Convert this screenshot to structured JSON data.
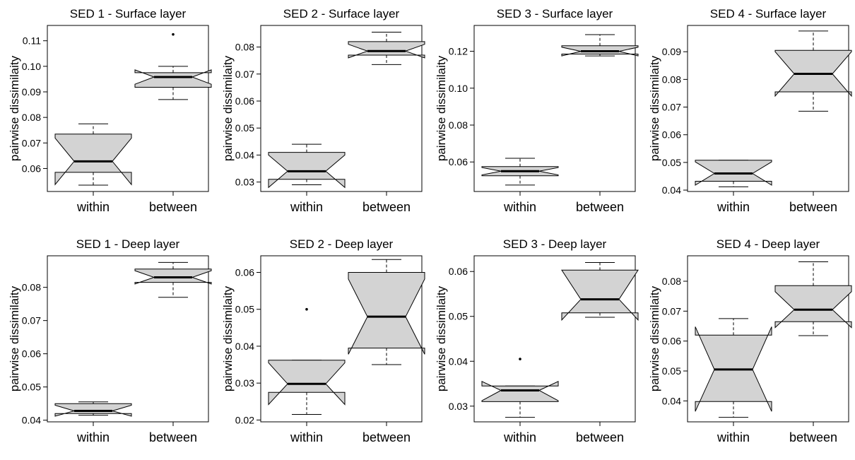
{
  "figure": {
    "ylabel": "pairwise dissimilaity",
    "categories": [
      "within",
      "between"
    ],
    "box_fill": "#d3d3d3",
    "line_color": "#000000"
  },
  "chart_data": [
    {
      "type": "boxplot",
      "notched": true,
      "title": "SED 1 - Surface layer",
      "ylabel": "pairwise dissimilaity",
      "categories": [
        "within",
        "between"
      ],
      "ylim": [
        0.051,
        0.116
      ],
      "yticks": [
        0.06,
        0.07,
        0.08,
        0.09,
        0.1,
        0.11
      ],
      "ytick_labels": [
        "0.06",
        "0.07",
        "0.08",
        "0.09",
        "0.10",
        "0.11"
      ],
      "boxes": [
        {
          "whisker_low": 0.0535,
          "q1": 0.0585,
          "median": 0.0628,
          "q3": 0.0735,
          "whisker_high": 0.0775,
          "notch_low": 0.0537,
          "notch_high": 0.0719,
          "outliers": []
        },
        {
          "whisker_low": 0.087,
          "q1": 0.0918,
          "median": 0.0958,
          "q3": 0.0975,
          "whisker_high": 0.1,
          "notch_low": 0.093,
          "notch_high": 0.0986,
          "outliers": [
            0.1125
          ]
        }
      ]
    },
    {
      "type": "boxplot",
      "notched": true,
      "title": "SED 2 - Surface layer",
      "ylabel": "pairwise dissimilaity",
      "categories": [
        "within",
        "between"
      ],
      "ylim": [
        0.0265,
        0.088
      ],
      "yticks": [
        0.03,
        0.04,
        0.05,
        0.06,
        0.07,
        0.08
      ],
      "ytick_labels": [
        "0.03",
        "0.04",
        "0.05",
        "0.06",
        "0.07",
        "0.08"
      ],
      "boxes": [
        {
          "whisker_low": 0.029,
          "q1": 0.031,
          "median": 0.034,
          "q3": 0.041,
          "whisker_high": 0.044,
          "notch_low": 0.028,
          "notch_high": 0.04,
          "outliers": []
        },
        {
          "whisker_low": 0.0735,
          "q1": 0.077,
          "median": 0.0785,
          "q3": 0.082,
          "whisker_high": 0.0855,
          "notch_low": 0.076,
          "notch_high": 0.081,
          "outliers": []
        }
      ]
    },
    {
      "type": "boxplot",
      "notched": true,
      "title": "SED 3 - Surface layer",
      "ylabel": "pairwise dissimilaity",
      "categories": [
        "within",
        "between"
      ],
      "ylim": [
        0.044,
        0.134
      ],
      "yticks": [
        0.06,
        0.08,
        0.1,
        0.12
      ],
      "ytick_labels": [
        "0.06",
        "0.08",
        "0.10",
        "0.12"
      ],
      "boxes": [
        {
          "whisker_low": 0.0475,
          "q1": 0.0525,
          "median": 0.055,
          "q3": 0.0575,
          "whisker_high": 0.062,
          "notch_low": 0.053,
          "notch_high": 0.057,
          "outliers": []
        },
        {
          "whisker_low": 0.1175,
          "q1": 0.1185,
          "median": 0.12,
          "q3": 0.123,
          "whisker_high": 0.129,
          "notch_low": 0.1175,
          "notch_high": 0.1222,
          "outliers": []
        }
      ]
    },
    {
      "type": "boxplot",
      "notched": true,
      "title": "SED 4 - Surface layer",
      "ylabel": "pairwise dissimilaity",
      "categories": [
        "within",
        "between"
      ],
      "ylim": [
        0.0395,
        0.0995
      ],
      "yticks": [
        0.04,
        0.05,
        0.06,
        0.07,
        0.08,
        0.09
      ],
      "ytick_labels": [
        "0.04",
        "0.05",
        "0.06",
        "0.07",
        "0.08",
        "0.09"
      ],
      "boxes": [
        {
          "whisker_low": 0.0412,
          "q1": 0.0432,
          "median": 0.046,
          "q3": 0.0508,
          "whisker_high": 0.0508,
          "notch_low": 0.0418,
          "notch_high": 0.0502,
          "outliers": []
        },
        {
          "whisker_low": 0.0685,
          "q1": 0.0755,
          "median": 0.082,
          "q3": 0.0905,
          "whisker_high": 0.0975,
          "notch_low": 0.074,
          "notch_high": 0.09,
          "outliers": []
        }
      ]
    },
    {
      "type": "boxplot",
      "notched": true,
      "title": "SED 1 - Deep layer",
      "ylabel": "pairwise dissimilaity",
      "categories": [
        "within",
        "between"
      ],
      "ylim": [
        0.0395,
        0.0895
      ],
      "yticks": [
        0.04,
        0.05,
        0.06,
        0.07,
        0.08
      ],
      "ytick_labels": [
        "0.04",
        "0.05",
        "0.06",
        "0.07",
        "0.08"
      ],
      "boxes": [
        {
          "whisker_low": 0.0415,
          "q1": 0.042,
          "median": 0.0428,
          "q3": 0.045,
          "whisker_high": 0.0455,
          "notch_low": 0.0412,
          "notch_high": 0.0445,
          "outliers": []
        },
        {
          "whisker_low": 0.077,
          "q1": 0.0815,
          "median": 0.083,
          "q3": 0.0855,
          "whisker_high": 0.0875,
          "notch_low": 0.081,
          "notch_high": 0.085,
          "outliers": []
        }
      ]
    },
    {
      "type": "boxplot",
      "notched": true,
      "title": "SED 2 - Deep layer",
      "ylabel": "pairwise dissimilaity",
      "categories": [
        "within",
        "between"
      ],
      "ylim": [
        0.0195,
        0.0645
      ],
      "yticks": [
        0.02,
        0.03,
        0.04,
        0.05,
        0.06
      ],
      "ytick_labels": [
        "0.02",
        "0.03",
        "0.04",
        "0.05",
        "0.06"
      ],
      "boxes": [
        {
          "whisker_low": 0.0215,
          "q1": 0.0275,
          "median": 0.0298,
          "q3": 0.0362,
          "whisker_high": 0.0362,
          "notch_low": 0.0242,
          "notch_high": 0.0355,
          "outliers": [
            0.05
          ]
        },
        {
          "whisker_low": 0.035,
          "q1": 0.0395,
          "median": 0.048,
          "q3": 0.06,
          "whisker_high": 0.0635,
          "notch_low": 0.0378,
          "notch_high": 0.0582,
          "outliers": []
        }
      ]
    },
    {
      "type": "boxplot",
      "notched": true,
      "title": "SED 3 - Deep layer",
      "ylabel": "pairwise dissimilaity",
      "categories": [
        "within",
        "between"
      ],
      "ylim": [
        0.0265,
        0.0635
      ],
      "yticks": [
        0.03,
        0.04,
        0.05,
        0.06
      ],
      "ytick_labels": [
        "0.03",
        "0.04",
        "0.05",
        "0.06"
      ],
      "boxes": [
        {
          "whisker_low": 0.0275,
          "q1": 0.031,
          "median": 0.0335,
          "q3": 0.0345,
          "whisker_high": 0.0345,
          "notch_low": 0.0312,
          "notch_high": 0.0355,
          "outliers": [
            0.0405
          ]
        },
        {
          "whisker_low": 0.0498,
          "q1": 0.0508,
          "median": 0.0538,
          "q3": 0.0603,
          "whisker_high": 0.062,
          "notch_low": 0.0492,
          "notch_high": 0.0603,
          "outliers": []
        }
      ]
    },
    {
      "type": "boxplot",
      "notched": true,
      "title": "SED 4 - Deep layer",
      "ylabel": "pairwise dissimilaity",
      "categories": [
        "within",
        "between"
      ],
      "ylim": [
        0.033,
        0.0885
      ],
      "yticks": [
        0.04,
        0.05,
        0.06,
        0.07,
        0.08
      ],
      "ytick_labels": [
        "0.04",
        "0.05",
        "0.06",
        "0.07",
        "0.08"
      ],
      "boxes": [
        {
          "whisker_low": 0.0345,
          "q1": 0.0398,
          "median": 0.0505,
          "q3": 0.062,
          "whisker_high": 0.0675,
          "notch_low": 0.0365,
          "notch_high": 0.0648,
          "outliers": []
        },
        {
          "whisker_low": 0.0618,
          "q1": 0.0665,
          "median": 0.0705,
          "q3": 0.0785,
          "whisker_high": 0.0865,
          "notch_low": 0.0645,
          "notch_high": 0.0765,
          "outliers": []
        }
      ]
    }
  ]
}
